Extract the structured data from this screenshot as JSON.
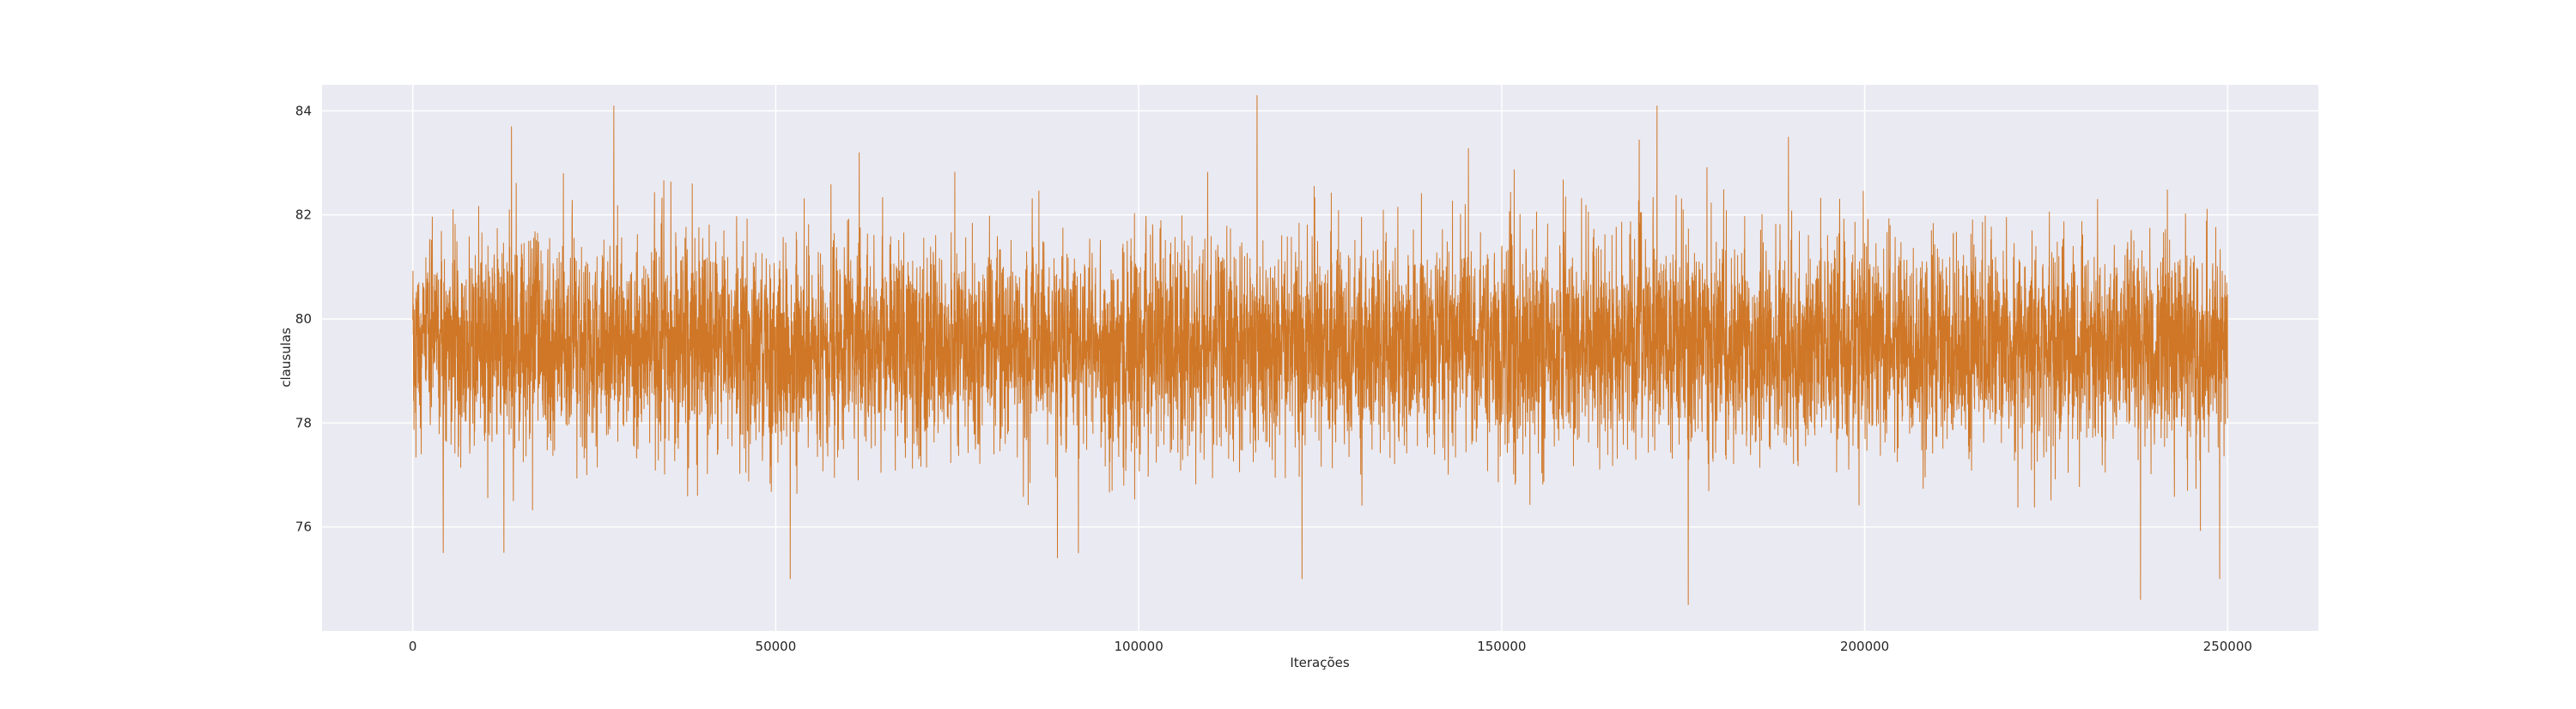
{
  "chart_data": {
    "type": "line",
    "title": "",
    "xlabel": "Iterações",
    "ylabel": "clausulas",
    "xlim": [
      -12500,
      262500
    ],
    "ylim": [
      74.0,
      84.5
    ],
    "x_ticks": [
      0,
      50000,
      100000,
      150000,
      200000,
      250000
    ],
    "y_ticks": [
      76,
      78,
      80,
      82,
      84
    ],
    "grid": true,
    "legend": "none",
    "series": [
      {
        "color": "#cc6a11",
        "x_range": [
          0,
          250000
        ],
        "mean": 79.5,
        "typical_range": [
          77.5,
          81.5
        ],
        "min": 74.5,
        "max": 84.3,
        "extremes": [
          {
            "x": 27700,
            "y": 84.1
          },
          {
            "x": 116300,
            "y": 84.3
          },
          {
            "x": 171400,
            "y": 84.1
          },
          {
            "x": 175700,
            "y": 74.5
          },
          {
            "x": 238000,
            "y": 74.6
          },
          {
            "x": 52000,
            "y": 75.0
          },
          {
            "x": 122500,
            "y": 75.0
          },
          {
            "x": 248900,
            "y": 75.0
          },
          {
            "x": 13600,
            "y": 83.7
          },
          {
            "x": 61500,
            "y": 83.2
          },
          {
            "x": 189500,
            "y": 83.5
          },
          {
            "x": 4200,
            "y": 75.5
          }
        ]
      }
    ]
  }
}
